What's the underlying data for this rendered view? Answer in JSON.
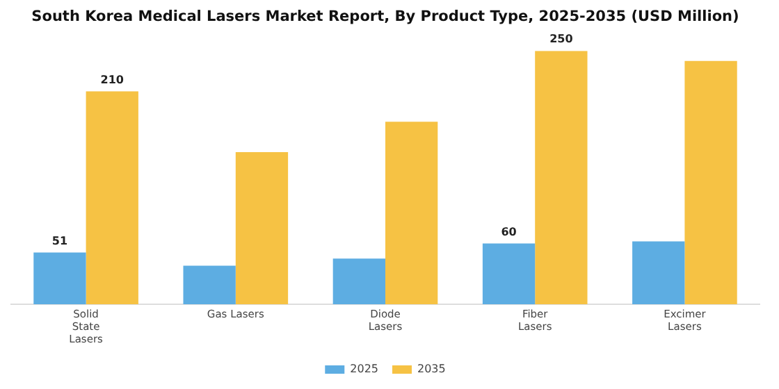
{
  "chart_data": {
    "type": "bar",
    "title": "South Korea Medical Lasers Market Report, By Product Type, 2025-2035 (USD Million)",
    "categories": [
      "Solid\nState\nLasers",
      "Gas Lasers",
      "Diode\nLasers",
      "Fiber\nLasers",
      "Excimer\nLasers"
    ],
    "series": [
      {
        "name": "2025",
        "color": "#5dade2",
        "values": [
          51,
          38,
          45,
          60,
          62
        ],
        "value_labels": [
          "51",
          null,
          null,
          "60",
          null
        ]
      },
      {
        "name": "2035",
        "color": "#f6c244",
        "values": [
          210,
          150,
          180,
          250,
          240
        ],
        "value_labels": [
          "210",
          null,
          null,
          "250",
          null
        ]
      }
    ],
    "grid": false,
    "legend": "bottom",
    "tick_labels": "x"
  }
}
